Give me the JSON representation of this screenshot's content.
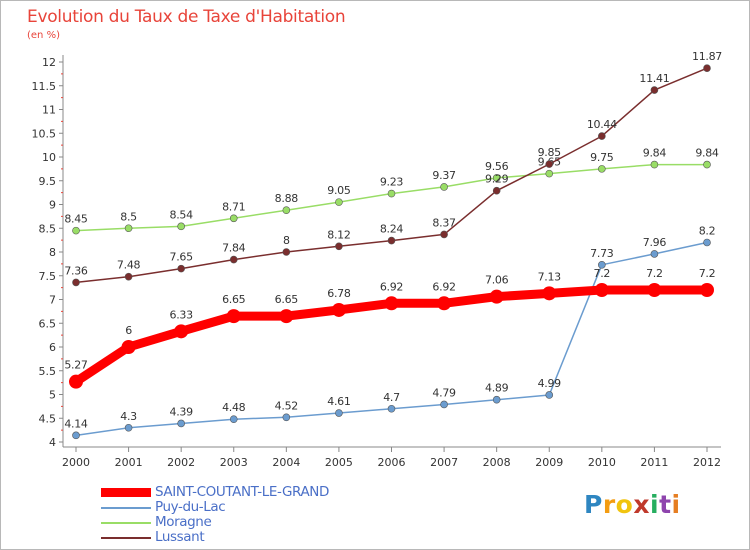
{
  "chart_data": {
    "type": "line",
    "title": "Evolution du Taux de Taxe d'Habitation",
    "subtitle": "(en %)",
    "x": [
      "2000",
      "2001",
      "2002",
      "2003",
      "2004",
      "2005",
      "2006",
      "2007",
      "2008",
      "2009",
      "2010",
      "2011",
      "2012"
    ],
    "ylim": [
      4,
      12
    ],
    "yticks": [
      "4",
      "4.5",
      "5",
      "5.5",
      "6",
      "6.5",
      "7",
      "7.5",
      "8",
      "8.5",
      "9",
      "9.5",
      "10",
      "10.5",
      "11",
      "11.5",
      "12"
    ],
    "grid": false,
    "legend_position": "bottom-left",
    "series": [
      {
        "name": "SAINT-COUTANT-LE-GRAND",
        "color": "#ff0000",
        "values": [
          5.27,
          6,
          6.33,
          6.65,
          6.65,
          6.78,
          6.92,
          6.92,
          7.06,
          7.13,
          7.2,
          7.2,
          7.2
        ],
        "labels": [
          "5.27",
          "6",
          "6.33",
          "6.65",
          "6.65",
          "6.78",
          "6.92",
          "6.92",
          "7.06",
          "7.13",
          "7.2",
          "7.2",
          "7.2"
        ]
      },
      {
        "name": "Puy-du-Lac",
        "color": "#6b9ccf",
        "values": [
          4.14,
          4.3,
          4.39,
          4.48,
          4.52,
          4.61,
          4.7,
          4.79,
          4.89,
          4.99,
          7.73,
          7.96,
          8.2
        ],
        "labels": [
          "4.14",
          "4.3",
          "4.39",
          "4.48",
          "4.52",
          "4.61",
          "4.7",
          "4.79",
          "4.89",
          "4.99",
          "7.73",
          "7.96",
          "8.2"
        ]
      },
      {
        "name": "Moragne",
        "color": "#99dd66",
        "values": [
          8.45,
          8.5,
          8.54,
          8.71,
          8.88,
          9.05,
          9.23,
          9.37,
          9.56,
          9.65,
          9.75,
          9.84,
          9.84
        ],
        "labels": [
          "8.45",
          "8.5",
          "8.54",
          "8.71",
          "8.88",
          "9.05",
          "9.23",
          "9.37",
          "9.56",
          "9.65",
          "9.75",
          "9.84",
          "9.84"
        ]
      },
      {
        "name": "Lussant",
        "color": "#7a2e2e",
        "values": [
          7.36,
          7.48,
          7.65,
          7.84,
          8,
          8.12,
          8.24,
          8.37,
          9.29,
          9.85,
          10.44,
          11.41,
          11.87
        ],
        "labels": [
          "7.36",
          "7.48",
          "7.65",
          "7.84",
          "8",
          "8.12",
          "8.24",
          "8.37",
          "9.29",
          "9.85",
          "10.44",
          "11.41",
          "11.87"
        ]
      }
    ]
  },
  "brand": {
    "letters": [
      "P",
      "r",
      "o",
      "x",
      "i",
      "t",
      "i"
    ],
    "colors": [
      "#2e86c1",
      "#f39c12",
      "#f1c40f",
      "#c0392b",
      "#27ae60",
      "#8e44ad",
      "#e67e22"
    ]
  }
}
